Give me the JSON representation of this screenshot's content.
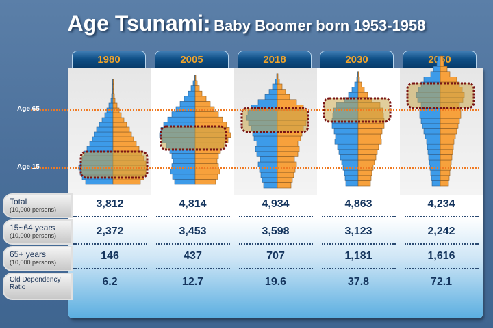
{
  "title": {
    "main": "Age Tsunami:",
    "sub": "Baby Boomer born 1953-1958"
  },
  "age_markers": [
    "Age 65",
    "Age 15"
  ],
  "colors": {
    "male": "#3d9be9",
    "female": "#f7a13c",
    "highlight": "#c9a64a",
    "highlight_border": "#7a1414",
    "age_line": "#f07a22"
  },
  "chart_data": {
    "type": "table",
    "categories": [
      "1980",
      "2005",
      "2018",
      "2030",
      "2050"
    ],
    "rows": [
      {
        "label": "Total",
        "unit": "(10,000 persons)",
        "values": [
          "3,812",
          "4,814",
          "4,934",
          "4,863",
          "4,234"
        ]
      },
      {
        "label": "15~64 years",
        "unit": "(10,000 persons)",
        "values": [
          "2,372",
          "3,453",
          "3,598",
          "3,123",
          "2,242"
        ]
      },
      {
        "label": "65+ years",
        "unit": "(10,000 persons)",
        "values": [
          "146",
          "437",
          "707",
          "1,181",
          "1,616"
        ]
      },
      {
        "label": "Old Dependency",
        "unit": "Ratio",
        "values": [
          "6.2",
          "12.7",
          "19.6",
          "37.8",
          "72.1"
        ]
      }
    ],
    "pyramids": "population pyramids per year with baby boomer cohort highlighted"
  }
}
